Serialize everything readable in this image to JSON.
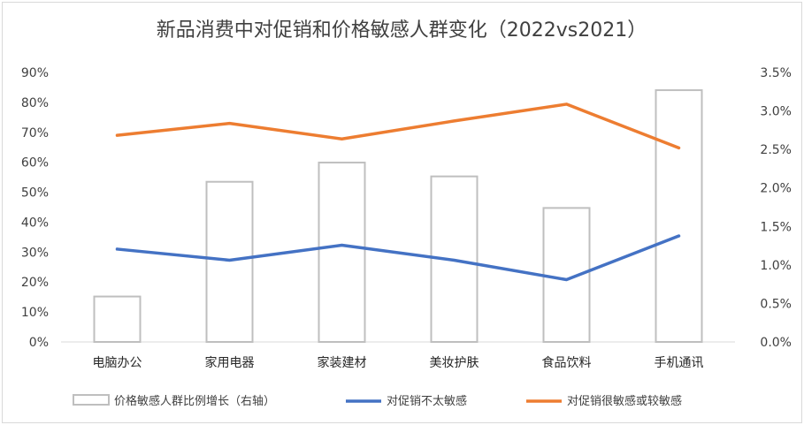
{
  "chart_data": {
    "type": "bar+line",
    "title": "新品消费中对促销和价格敏感人群变化（2022vs2021）",
    "categories": [
      "电脑办公",
      "家用电器",
      "家装建材",
      "美妆护肤",
      "食品饮料",
      "手机通讯"
    ],
    "y_left": {
      "ylim": [
        0,
        90
      ],
      "ticks": [
        "0%",
        "10%",
        "20%",
        "30%",
        "40%",
        "50%",
        "60%",
        "70%",
        "80%",
        "90%"
      ]
    },
    "y_right": {
      "ylim": [
        0,
        3.5
      ],
      "ticks": [
        "0.0%",
        "0.5%",
        "1.0%",
        "1.5%",
        "2.0%",
        "2.5%",
        "3.0%",
        "3.5%"
      ]
    },
    "bars": {
      "name": "价格敏感人群比例增长（右轴）",
      "axis": "right",
      "values": [
        0.59,
        2.08,
        2.33,
        2.15,
        1.74,
        3.27
      ],
      "color": "#bfbfbf"
    },
    "series": [
      {
        "name": "对促销不太敏感",
        "axis": "left",
        "values": [
          31,
          27.3,
          32.3,
          27.3,
          20.8,
          35.4
        ],
        "color": "#4472c4"
      },
      {
        "name": "对促销很敏感或较敏感",
        "axis": "left",
        "values": [
          69,
          73,
          67.8,
          73.8,
          79.4,
          64.8
        ],
        "color": "#ed7d31"
      }
    ],
    "grid": false,
    "legend_position": "bottom"
  }
}
